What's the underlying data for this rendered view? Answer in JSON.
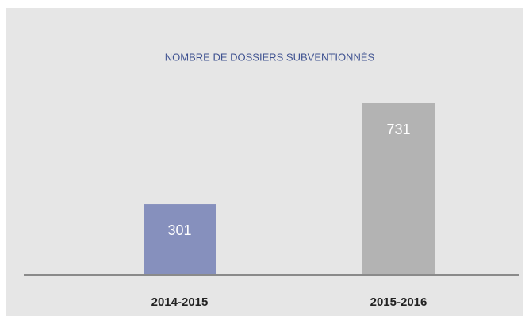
{
  "chart_data": {
    "type": "bar",
    "title": "NOMBRE DE DOSSIERS SUBVENTIONNÉS",
    "categories": [
      "2014-2015",
      "2015-2016"
    ],
    "values": [
      301,
      731
    ],
    "colors": [
      "#8690bd",
      "#b3b3b3"
    ]
  }
}
